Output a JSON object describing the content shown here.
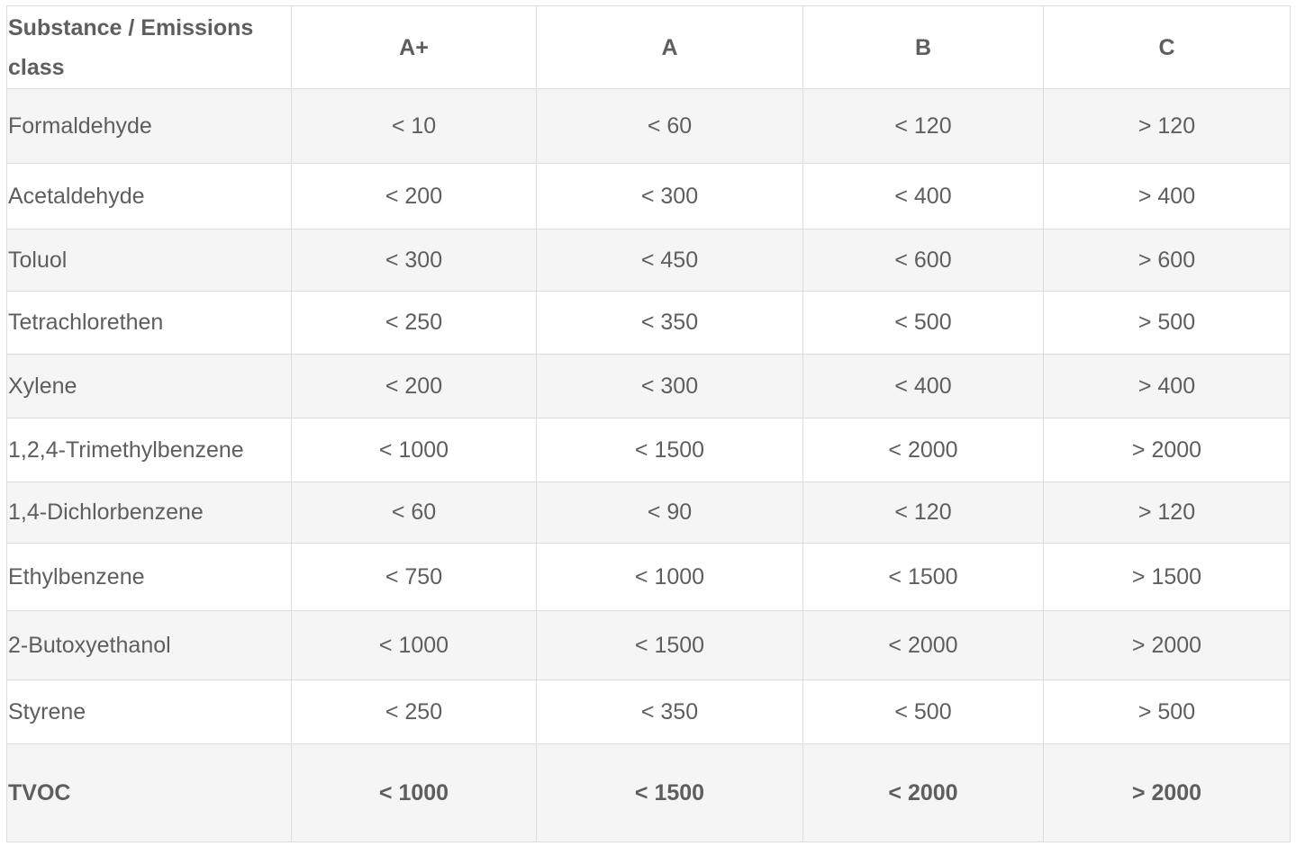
{
  "table": {
    "headers": [
      "Substance / Emissions class",
      "A+",
      "A",
      "B",
      "C"
    ],
    "rows": [
      [
        "Formaldehyde",
        "< 10",
        "< 60",
        "< 120",
        "> 120"
      ],
      [
        "Acetaldehyde",
        "< 200",
        "< 300",
        "< 400",
        "> 400"
      ],
      [
        "Toluol",
        "< 300",
        "< 450",
        "< 600",
        "> 600"
      ],
      [
        "Tetrachlorethen",
        "< 250",
        "< 350",
        "< 500",
        "> 500"
      ],
      [
        "Xylene",
        "< 200",
        "< 300",
        "< 400",
        "> 400"
      ],
      [
        "1,2,4-Trimethylbenzene",
        "< 1000",
        "< 1500",
        "< 2000",
        "> 2000"
      ],
      [
        "1,4-Dichlorbenzene",
        "< 60",
        "< 90",
        "< 120",
        "> 120"
      ],
      [
        "Ethylbenzene",
        "< 750",
        "< 1000",
        "< 1500",
        "> 1500"
      ],
      [
        "2-Butoxyethanol",
        "< 1000",
        "< 1500",
        "< 2000",
        "> 2000"
      ],
      [
        "Styrene",
        "< 250",
        "< 350",
        "< 500",
        "> 500"
      ],
      [
        "TVOC",
        "< 1000",
        "< 1500",
        "< 2000",
        "> 2000"
      ]
    ]
  }
}
